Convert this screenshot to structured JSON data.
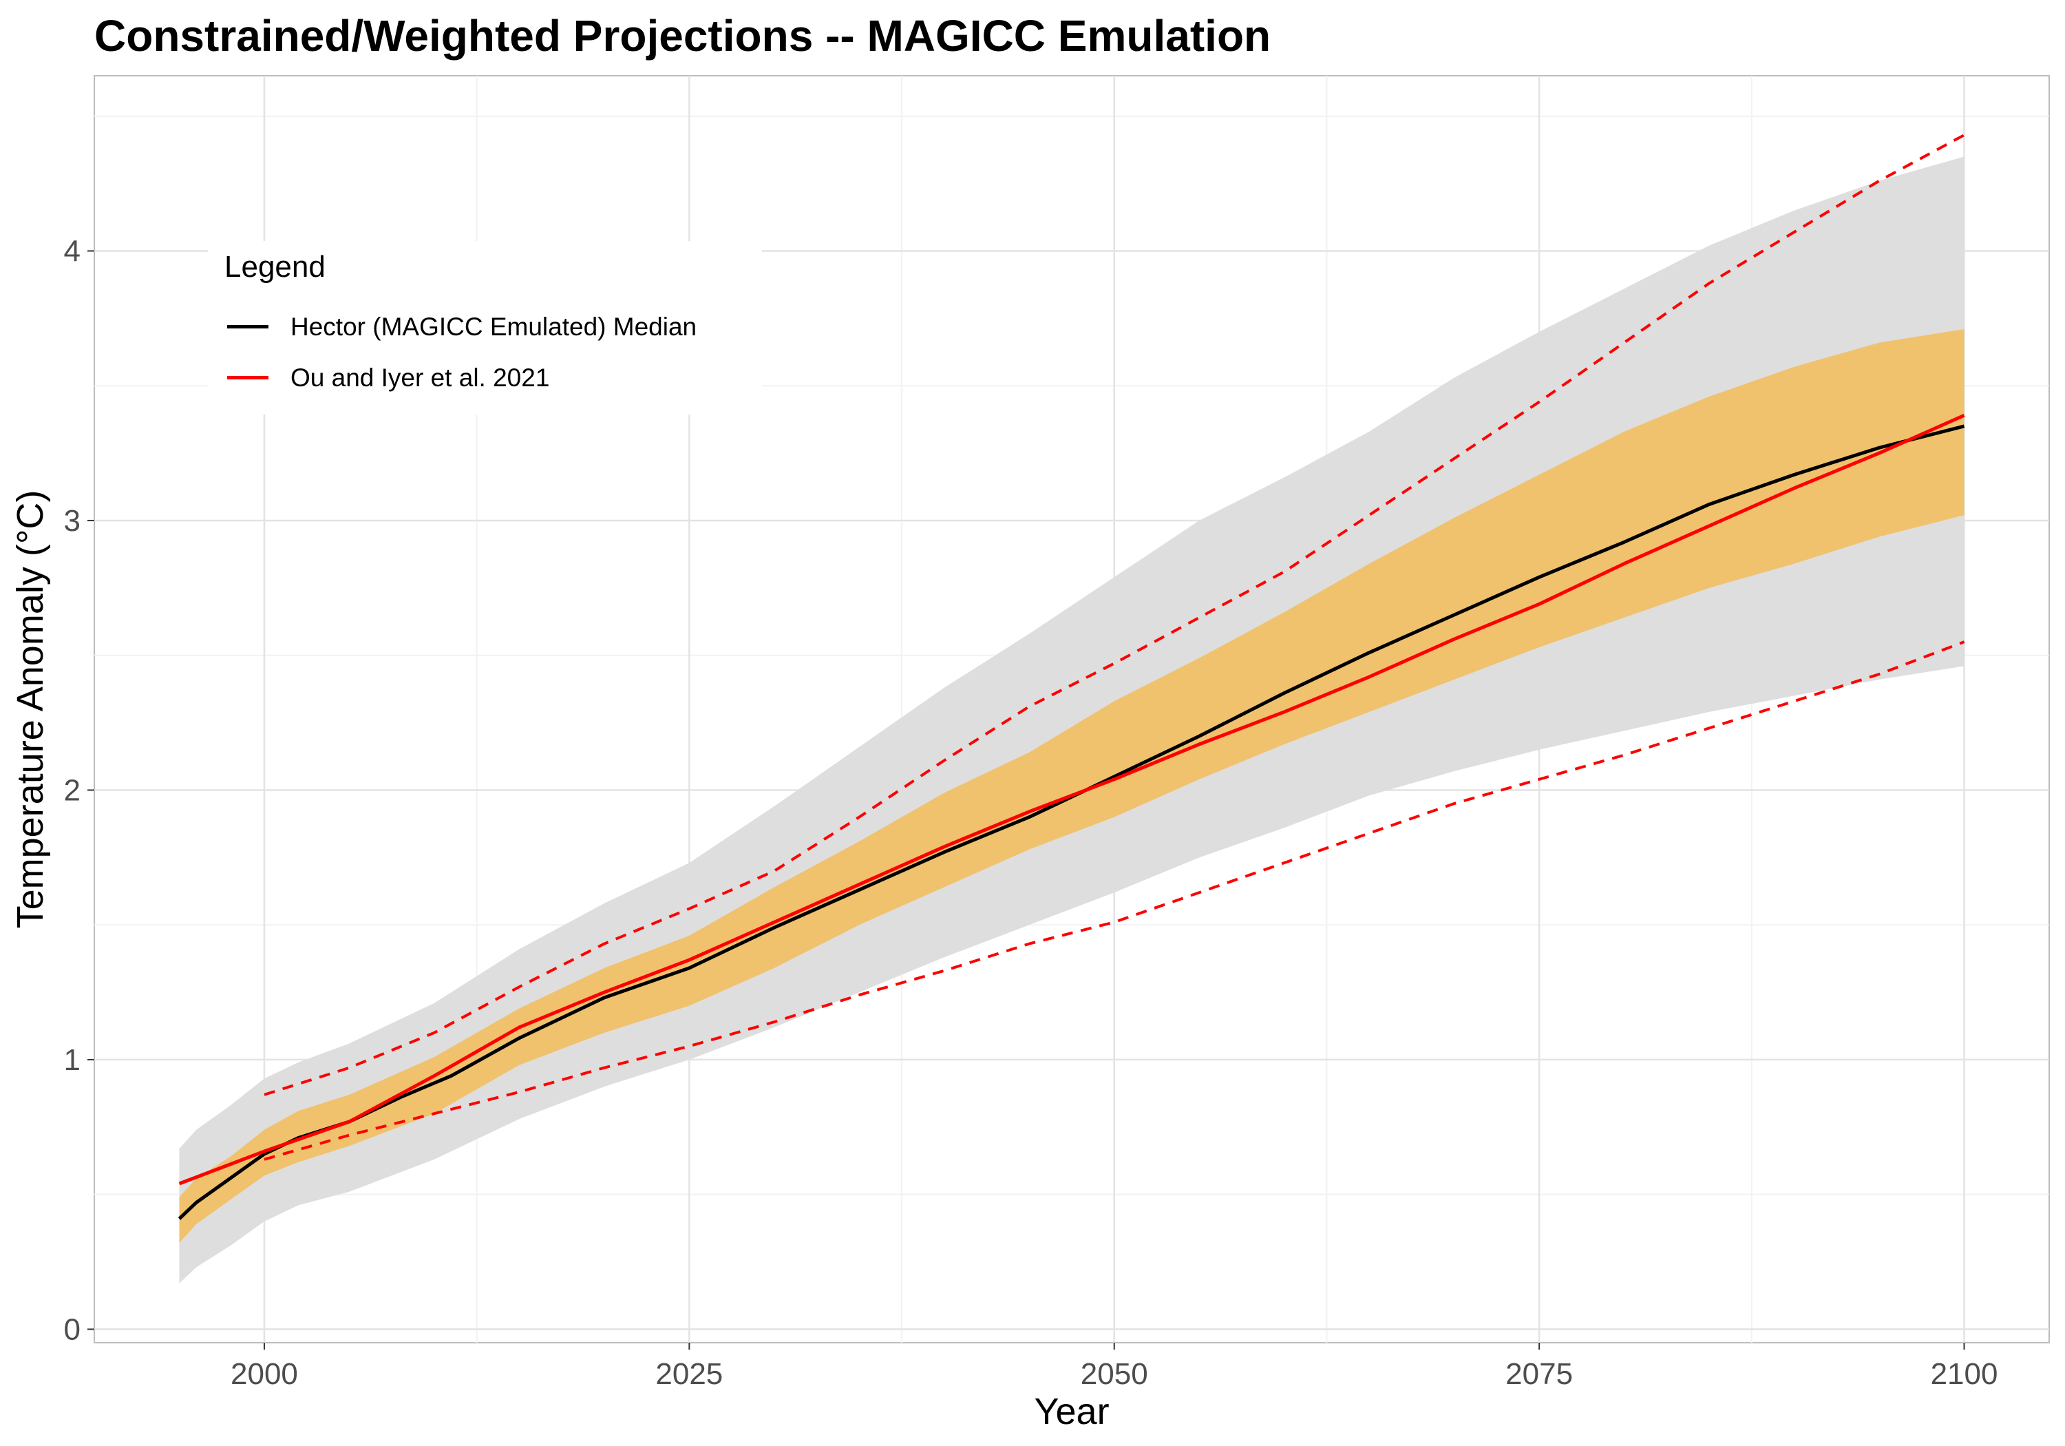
{
  "chart_data": {
    "type": "line",
    "title": "Constrained/Weighted Projections -- MAGICC Emulation",
    "xlabel": "Year",
    "ylabel": "Temperature Anomaly (°C)",
    "xlim": [
      1990,
      2105
    ],
    "ylim": [
      -0.05,
      4.65
    ],
    "x_ticks": [
      2000,
      2025,
      2050,
      2075,
      2100
    ],
    "y_ticks": [
      0,
      1,
      2,
      3,
      4
    ],
    "grid": true,
    "legend": {
      "title": "Legend",
      "position": "top-left",
      "entries": [
        {
          "label": "Hector (MAGICC Emulated) Median",
          "color": "#000000"
        },
        {
          "label": "Ou and Iyer et al. 2021",
          "color": "#ff0000"
        }
      ]
    },
    "bands": [
      {
        "color": "#dedede",
        "x": [
          1995,
          1996,
          1998,
          2000,
          2002,
          2005,
          2010,
          2015,
          2020,
          2025,
          2030,
          2035,
          2040,
          2045,
          2050,
          2055,
          2060,
          2065,
          2070,
          2075,
          2080,
          2085,
          2090,
          2095,
          2100
        ],
        "lower": [
          0.17,
          0.23,
          0.31,
          0.4,
          0.46,
          0.51,
          0.63,
          0.78,
          0.9,
          1.0,
          1.12,
          1.25,
          1.38,
          1.5,
          1.62,
          1.75,
          1.86,
          1.98,
          2.07,
          2.15,
          2.22,
          2.29,
          2.35,
          2.41,
          2.46
        ],
        "upper": [
          0.67,
          0.74,
          0.83,
          0.93,
          0.99,
          1.06,
          1.21,
          1.41,
          1.58,
          1.73,
          1.94,
          2.16,
          2.38,
          2.58,
          2.79,
          3.0,
          3.16,
          3.33,
          3.53,
          3.7,
          3.86,
          4.02,
          4.15,
          4.26,
          4.35
        ]
      },
      {
        "color": "#f0c26e",
        "x": [
          1995,
          1996,
          1998,
          2000,
          2002,
          2005,
          2010,
          2015,
          2020,
          2025,
          2030,
          2035,
          2040,
          2045,
          2050,
          2055,
          2060,
          2065,
          2070,
          2075,
          2080,
          2085,
          2090,
          2095,
          2100
        ],
        "lower": [
          0.32,
          0.39,
          0.48,
          0.57,
          0.62,
          0.68,
          0.8,
          0.98,
          1.1,
          1.2,
          1.34,
          1.5,
          1.64,
          1.78,
          1.9,
          2.04,
          2.17,
          2.29,
          2.41,
          2.53,
          2.64,
          2.75,
          2.84,
          2.94,
          3.02
        ],
        "upper": [
          0.49,
          0.56,
          0.64,
          0.74,
          0.81,
          0.87,
          1.01,
          1.19,
          1.34,
          1.46,
          1.64,
          1.81,
          1.99,
          2.14,
          2.33,
          2.49,
          2.66,
          2.84,
          3.01,
          3.17,
          3.33,
          3.46,
          3.57,
          3.66,
          3.71
        ]
      }
    ],
    "series": [
      {
        "name": "Hector (MAGICC Emulated) Median",
        "color": "#000000",
        "style": "solid",
        "x": [
          1995,
          1996,
          1998,
          2000,
          2002,
          2005,
          2008,
          2011,
          2015,
          2020,
          2025,
          2030,
          2035,
          2040,
          2045,
          2050,
          2055,
          2060,
          2065,
          2070,
          2075,
          2080,
          2085,
          2090,
          2095,
          2100
        ],
        "values": [
          0.41,
          0.47,
          0.56,
          0.65,
          0.71,
          0.77,
          0.86,
          0.94,
          1.08,
          1.23,
          1.34,
          1.49,
          1.63,
          1.77,
          1.9,
          2.05,
          2.2,
          2.36,
          2.51,
          2.65,
          2.79,
          2.92,
          3.06,
          3.17,
          3.27,
          3.35
        ]
      },
      {
        "name": "Ou and Iyer et al. 2021",
        "color": "#ff0000",
        "style": "solid",
        "x": [
          1995,
          2000,
          2005,
          2010,
          2015,
          2020,
          2025,
          2030,
          2035,
          2040,
          2045,
          2050,
          2055,
          2060,
          2065,
          2070,
          2075,
          2080,
          2085,
          2090,
          2095,
          2100
        ],
        "values": [
          0.54,
          0.66,
          0.77,
          0.94,
          1.12,
          1.25,
          1.37,
          1.51,
          1.65,
          1.79,
          1.92,
          2.04,
          2.17,
          2.29,
          2.42,
          2.56,
          2.69,
          2.84,
          2.98,
          3.12,
          3.25,
          3.39
        ]
      },
      {
        "color": "#ff0000",
        "style": "dashed",
        "x": [
          2000,
          2005,
          2010,
          2015,
          2020,
          2025,
          2030,
          2035,
          2040,
          2045,
          2050,
          2055,
          2060,
          2065,
          2070,
          2075,
          2080,
          2085,
          2090,
          2095,
          2100
        ],
        "values": [
          0.87,
          0.97,
          1.1,
          1.27,
          1.43,
          1.56,
          1.7,
          1.9,
          2.11,
          2.31,
          2.47,
          2.64,
          2.81,
          3.02,
          3.23,
          3.44,
          3.66,
          3.88,
          4.07,
          4.26,
          4.43
        ]
      },
      {
        "color": "#ff0000",
        "style": "dashed",
        "x": [
          2000,
          2005,
          2010,
          2015,
          2020,
          2025,
          2030,
          2035,
          2040,
          2045,
          2050,
          2055,
          2060,
          2065,
          2070,
          2075,
          2080,
          2085,
          2090,
          2095,
          2100
        ],
        "values": [
          0.63,
          0.72,
          0.8,
          0.88,
          0.97,
          1.05,
          1.14,
          1.24,
          1.33,
          1.43,
          1.51,
          1.62,
          1.73,
          1.84,
          1.95,
          2.04,
          2.13,
          2.23,
          2.33,
          2.43,
          2.55
        ]
      }
    ]
  }
}
